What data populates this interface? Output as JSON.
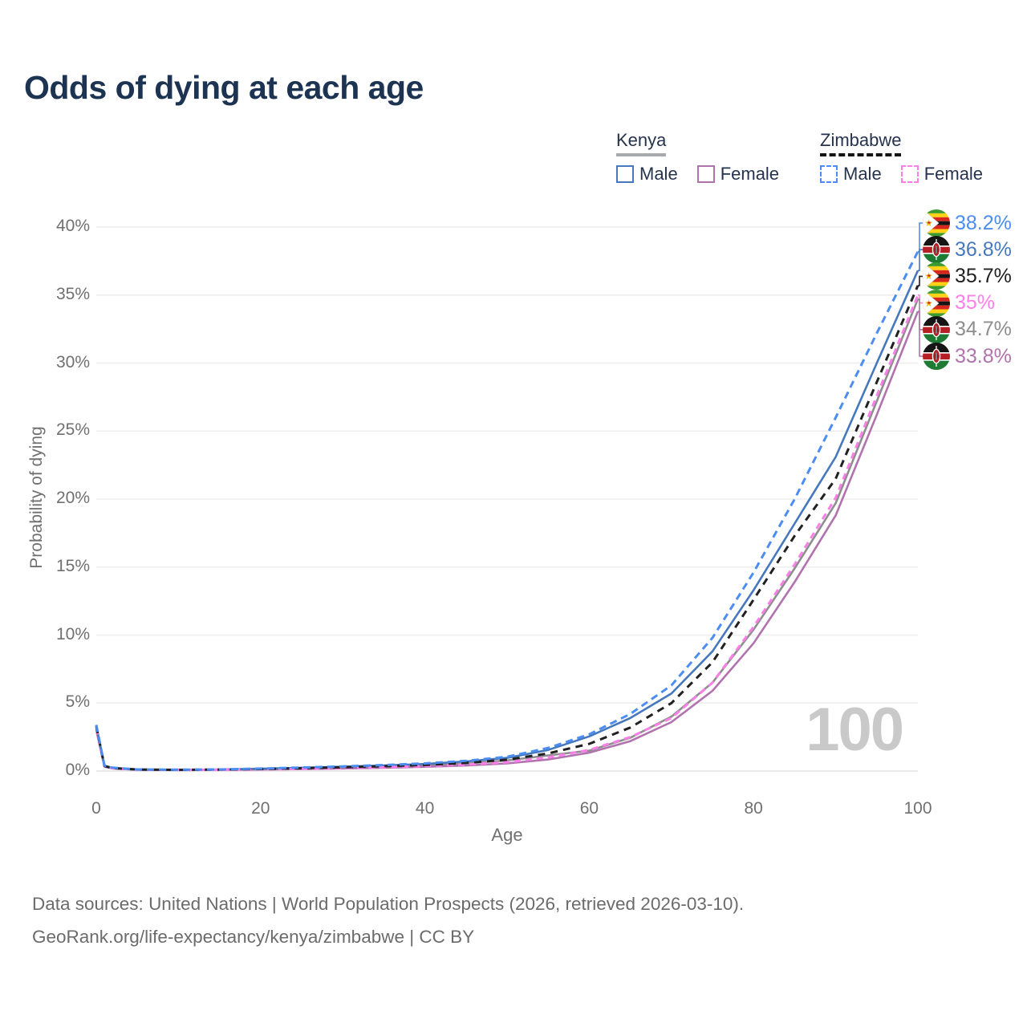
{
  "title": "Odds of dying at each age",
  "legend": {
    "groups": [
      {
        "country": "Kenya",
        "line_style": "solid",
        "line_color": "#a7a9ac",
        "items": [
          {
            "label": "Male",
            "color": "#4678bd",
            "dash": false
          },
          {
            "label": "Female",
            "color": "#b173ae",
            "dash": false
          }
        ]
      },
      {
        "country": "Zimbabwe",
        "line_style": "dashed",
        "line_color": "#141414",
        "items": [
          {
            "label": "Male",
            "color": "#4c8df2",
            "dash": true
          },
          {
            "label": "Female",
            "color": "#fc7fe9",
            "dash": true
          }
        ]
      }
    ]
  },
  "chart_data": {
    "type": "line",
    "title": "Odds of dying at each age",
    "xlabel": "Age",
    "ylabel": "Probability of dying",
    "xlim": [
      0,
      100
    ],
    "ylim": [
      0,
      40
    ],
    "xticks": [
      0,
      20,
      40,
      60,
      80,
      100
    ],
    "yticks": [
      0,
      5,
      10,
      15,
      20,
      25,
      30,
      35,
      40
    ],
    "ytick_suffix": "%",
    "grid": true,
    "legend_position": "top-right",
    "watermark": "100",
    "ages": [
      0,
      1,
      2,
      5,
      10,
      15,
      20,
      25,
      30,
      35,
      40,
      45,
      50,
      55,
      60,
      65,
      70,
      75,
      80,
      85,
      90,
      95,
      100
    ],
    "series": [
      {
        "key": "kenya-all",
        "name": "Kenya All",
        "country": "kenya",
        "sex": "all",
        "color": "#8e8e8e",
        "dash": null,
        "end_label": "34.7%",
        "values": [
          3.25,
          0.36,
          0.21,
          0.1,
          0.08,
          0.1,
          0.14,
          0.19,
          0.26,
          0.33,
          0.42,
          0.56,
          0.78,
          1.15,
          1.5,
          2.45,
          4.0,
          6.5,
          10.4,
          14.9,
          19.7,
          27.2,
          34.7
        ]
      },
      {
        "key": "kenya-female",
        "name": "Kenya Female",
        "country": "kenya",
        "sex": "female",
        "color": "#b173ae",
        "dash": null,
        "end_label": "33.8%",
        "values": [
          3.0,
          0.32,
          0.19,
          0.09,
          0.07,
          0.08,
          0.11,
          0.14,
          0.19,
          0.24,
          0.31,
          0.41,
          0.56,
          0.85,
          1.35,
          2.2,
          3.6,
          5.9,
          9.4,
          13.9,
          18.8,
          26.2,
          33.8
        ]
      },
      {
        "key": "kenya-male",
        "name": "Kenya Male",
        "country": "kenya",
        "sex": "male",
        "color": "#4678bd",
        "dash": null,
        "end_label": "36.8%",
        "values": [
          3.35,
          0.38,
          0.23,
          0.11,
          0.09,
          0.11,
          0.17,
          0.24,
          0.32,
          0.41,
          0.52,
          0.7,
          0.97,
          1.55,
          2.55,
          3.9,
          5.7,
          8.8,
          13.3,
          18.2,
          23.1,
          30.0,
          36.8
        ]
      },
      {
        "key": "zimbabwe-female",
        "name": "Zimbabwe Female",
        "country": "zimbabwe",
        "sex": "female",
        "color": "#fc7fe9",
        "dash": "8 6",
        "end_label": "35%",
        "values": [
          3.15,
          0.34,
          0.2,
          0.1,
          0.08,
          0.09,
          0.12,
          0.16,
          0.22,
          0.28,
          0.36,
          0.48,
          0.65,
          1.0,
          1.55,
          2.5,
          3.9,
          6.5,
          10.6,
          15.2,
          20.1,
          27.6,
          35.0
        ]
      },
      {
        "key": "zimbabwe-all",
        "name": "Zimbabwe All",
        "country": "zimbabwe",
        "sex": "all",
        "color": "#212121",
        "dash": "9 7",
        "end_label": "35.7%",
        "values": [
          3.3,
          0.37,
          0.22,
          0.11,
          0.09,
          0.11,
          0.15,
          0.21,
          0.28,
          0.36,
          0.45,
          0.6,
          0.83,
          1.3,
          2.0,
          3.2,
          5.0,
          8.0,
          12.6,
          17.3,
          21.5,
          28.6,
          35.7
        ]
      },
      {
        "key": "zimbabwe-male",
        "name": "Zimbabwe Male",
        "country": "zimbabwe",
        "sex": "male",
        "color": "#4c8df2",
        "dash": "9 6",
        "end_label": "38.2%",
        "values": [
          3.4,
          0.4,
          0.25,
          0.12,
          0.1,
          0.12,
          0.18,
          0.26,
          0.34,
          0.44,
          0.56,
          0.75,
          1.05,
          1.7,
          2.7,
          4.2,
          6.3,
          9.8,
          14.6,
          20.0,
          26.0,
          32.2,
          38.2
        ]
      }
    ]
  },
  "footer": {
    "line1": "Data sources: United Nations | World Population Prospects (2026, retrieved 2026-03-10).",
    "line2": "GeoRank.org/life-expectancy/kenya/zimbabwe | CC BY"
  }
}
